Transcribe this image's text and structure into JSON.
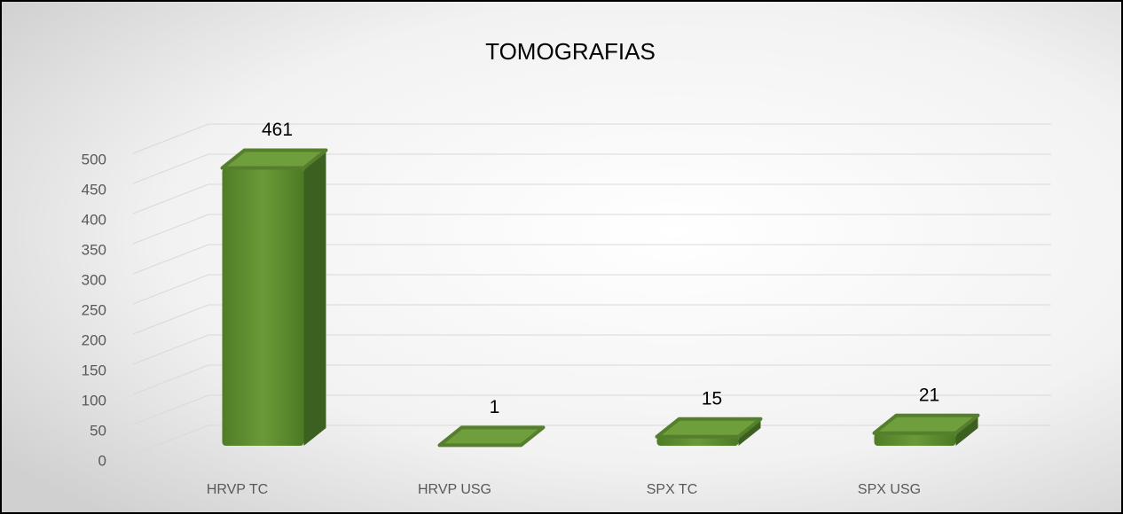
{
  "chart_data": {
    "type": "bar3d",
    "title": "TOMOGRAFIAS",
    "categories": [
      "HRVP TC",
      "HRVP USG",
      "SPX TC",
      "SPX USG"
    ],
    "values": [
      461,
      1,
      15,
      21
    ],
    "color": "#5a8a2e",
    "ylim": [
      0,
      500
    ],
    "yticks": [
      0,
      50,
      100,
      150,
      200,
      250,
      300,
      350,
      400,
      450,
      500
    ],
    "grid": true
  }
}
